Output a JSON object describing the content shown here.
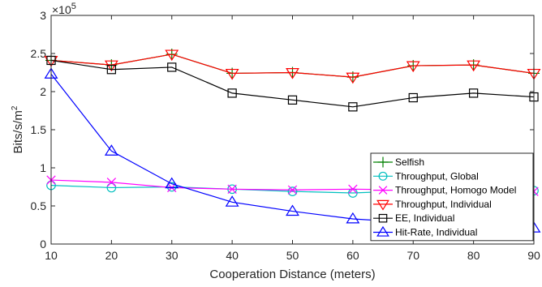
{
  "chart_data": {
    "type": "line",
    "xlabel": "Cooperation Distance (meters)",
    "ylabel": "Bits/s/m",
    "ylabel_superscript": "2",
    "y_multiplier_base": "×10",
    "y_multiplier_exp": "5",
    "xlim": [
      10,
      90
    ],
    "ylim": [
      0,
      3
    ],
    "x_ticks": [
      "10",
      "20",
      "30",
      "40",
      "50",
      "60",
      "70",
      "80",
      "90"
    ],
    "y_ticks": [
      "0",
      "0.5",
      "1",
      "1.5",
      "2",
      "2.5",
      "3"
    ],
    "grid": false,
    "legend_position": "lower-right",
    "x": [
      10,
      20,
      30,
      40,
      50,
      60,
      70,
      80,
      90
    ],
    "series": [
      {
        "name": "Selfish",
        "color": "#008000",
        "marker": "plus",
        "values": [
          2.41,
          2.35,
          2.49,
          2.24,
          2.25,
          2.19,
          2.34,
          2.35,
          2.24
        ]
      },
      {
        "name": "Throughput, Global",
        "color": "#00BFBF",
        "marker": "circle",
        "values": [
          0.77,
          0.74,
          0.75,
          0.72,
          0.69,
          0.67,
          0.7,
          0.71,
          0.7
        ]
      },
      {
        "name": "Throughput, Homogo Model",
        "color": "#FF00FF",
        "marker": "x",
        "values": [
          0.84,
          0.81,
          0.74,
          0.72,
          0.71,
          0.72,
          0.71,
          0.71,
          0.69
        ]
      },
      {
        "name": "Throughput, Individual",
        "color": "#FF0000",
        "marker": "triangle-down",
        "values": [
          2.41,
          2.35,
          2.49,
          2.24,
          2.25,
          2.19,
          2.34,
          2.35,
          2.24
        ]
      },
      {
        "name": "EE, Individual",
        "color": "#000000",
        "marker": "square",
        "values": [
          2.41,
          2.29,
          2.32,
          1.98,
          1.89,
          1.8,
          1.92,
          1.98,
          1.93
        ]
      },
      {
        "name": "Hit-Rate, Individual",
        "color": "#0000FF",
        "marker": "triangle-up",
        "values": [
          2.23,
          1.22,
          0.79,
          0.55,
          0.43,
          0.33,
          0.28,
          0.26,
          0.21
        ]
      }
    ]
  }
}
